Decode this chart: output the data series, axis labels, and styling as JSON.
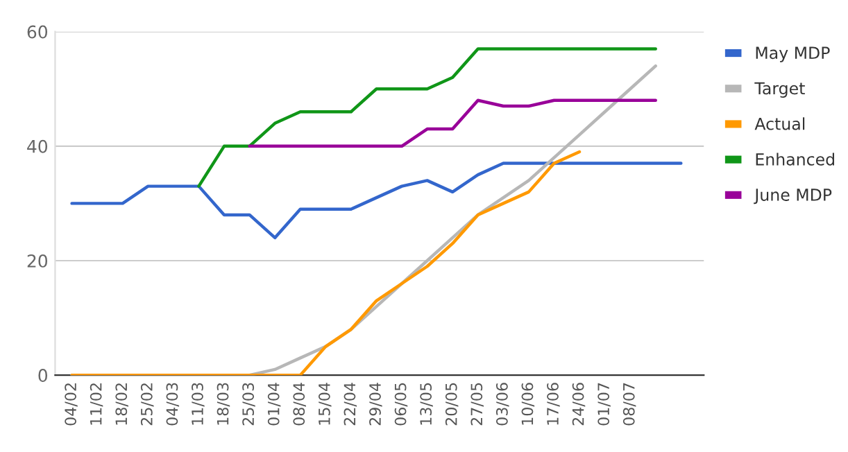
{
  "chart_data": {
    "type": "line",
    "categories": [
      "04/02",
      "11/02",
      "18/02",
      "25/02",
      "04/03",
      "11/03",
      "18/03",
      "25/03",
      "01/04",
      "08/04",
      "15/04",
      "22/04",
      "29/04",
      "06/05",
      "13/05",
      "20/05",
      "27/05",
      "03/06",
      "10/06",
      "17/06",
      "24/06",
      "01/07",
      "08/07",
      null,
      null
    ],
    "series": [
      {
        "name": "May MDP",
        "color": "#3366cc",
        "values": [
          30,
          30,
          30,
          33,
          33,
          33,
          28,
          28,
          24,
          29,
          29,
          29,
          31,
          33,
          34,
          32,
          35,
          37,
          37,
          37,
          37,
          37,
          37,
          37,
          37
        ]
      },
      {
        "name": "Target",
        "color": "#b7b7b7",
        "values": [
          0,
          0,
          0,
          0,
          0,
          0,
          0,
          0,
          1,
          3,
          5,
          8,
          12,
          16,
          20,
          24,
          28,
          31,
          34,
          38,
          42,
          46,
          50,
          54,
          null
        ]
      },
      {
        "name": "Actual",
        "color": "#ff9900",
        "values": [
          0,
          0,
          0,
          0,
          0,
          0,
          0,
          0,
          0,
          0,
          5,
          8,
          13,
          16,
          19,
          23,
          28,
          30,
          32,
          37,
          39,
          null,
          null,
          null,
          null
        ]
      },
      {
        "name": "Enhanced",
        "color": "#109618",
        "values": [
          null,
          null,
          null,
          null,
          null,
          33,
          40,
          40,
          44,
          46,
          46,
          46,
          50,
          50,
          50,
          52,
          57,
          57,
          57,
          57,
          57,
          57,
          57,
          57,
          null
        ]
      },
      {
        "name": "June MDP",
        "color": "#990099",
        "values": [
          null,
          null,
          null,
          null,
          null,
          null,
          null,
          40,
          40,
          40,
          40,
          40,
          40,
          40,
          43,
          43,
          48,
          47,
          47,
          48,
          48,
          48,
          48,
          48,
          null
        ]
      }
    ],
    "ylim": [
      0,
      60
    ],
    "yticks": [
      0,
      20,
      40,
      60
    ],
    "grid": "y",
    "legend": "right",
    "marker": "none",
    "line_style": "solid"
  }
}
